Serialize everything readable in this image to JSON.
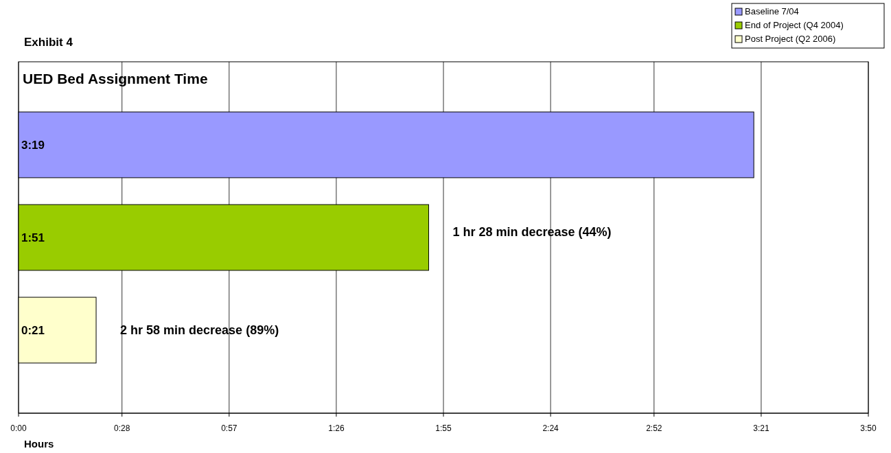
{
  "chart_data": {
    "type": "bar",
    "orientation": "horizontal",
    "title": "Exhibit 4",
    "subtitle": "UED Bed Assignment Time",
    "xlabel": "Hours",
    "categories": [
      null,
      null,
      null
    ],
    "series": [
      {
        "name": "Baseline 7/04",
        "color": "#9999ff",
        "values": [
          199,
          null,
          null
        ],
        "value_labels": [
          "3:19",
          null,
          null
        ]
      },
      {
        "name": "End of Project (Q4 2004)",
        "color": "#99cc00",
        "values": [
          null,
          111,
          null
        ],
        "value_labels": [
          null,
          "1:51",
          null
        ]
      },
      {
        "name": "Post Project (Q2 2006)",
        "color": "#ffffcc",
        "values": [
          null,
          null,
          21
        ],
        "value_labels": [
          null,
          null,
          "0:21"
        ]
      }
    ],
    "xlim": [
      0,
      230
    ],
    "xticks": [
      {
        "value": 0,
        "label": "0:00"
      },
      {
        "value": 28,
        "label": "0:28"
      },
      {
        "value": 57,
        "label": "0:57"
      },
      {
        "value": 86,
        "label": "1:26"
      },
      {
        "value": 115,
        "label": "1:55"
      },
      {
        "value": 144,
        "label": "2:24"
      },
      {
        "value": 172,
        "label": "2:52"
      },
      {
        "value": 201,
        "label": "3:21"
      },
      {
        "value": 230,
        "label": "3:50"
      }
    ],
    "grid": "x",
    "legend": "top right",
    "annotations": [
      null,
      "1 hr 28 min decrease (44%)",
      "2 hr 58 min decrease (89%)"
    ]
  }
}
